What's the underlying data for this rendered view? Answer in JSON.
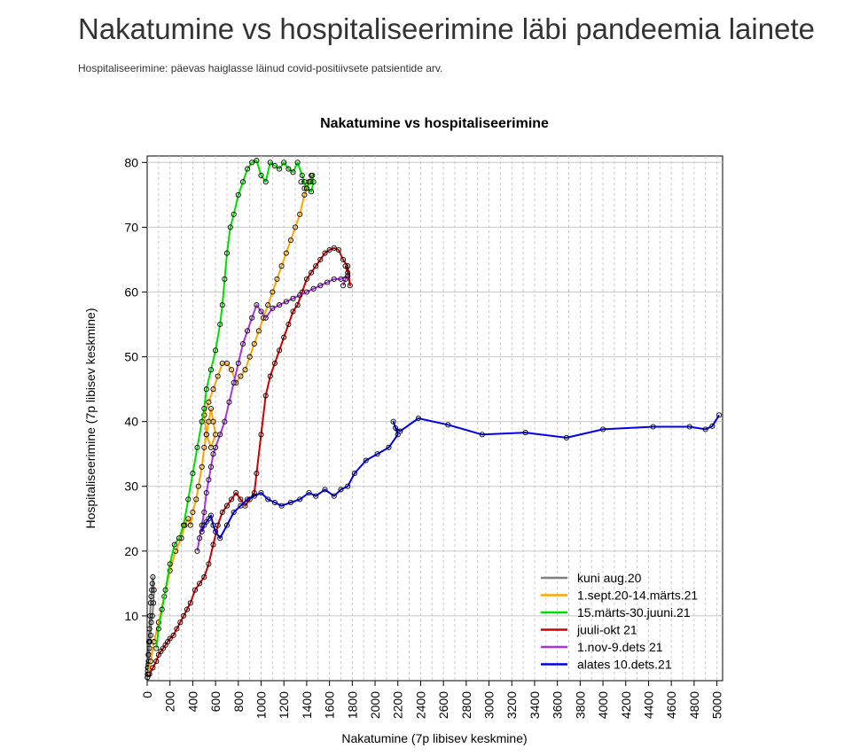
{
  "page": {
    "title": "Nakatumine vs hospitaliseerimine läbi pandeemia lainete",
    "subtitle": "Hospitaliseerimine: päevas haiglasse läinud covid-positiivsete patsientide arv."
  },
  "chart_data": {
    "type": "line",
    "title": "Nakatumine vs hospitaliseerimine",
    "xlabel": "Nakatumine (7p libisev keskmine)",
    "ylabel": "Hospitaliseerimine (7p libisev keskmine)",
    "xlim": [
      0,
      5050
    ],
    "ylim": [
      0,
      81
    ],
    "x_ticks": [
      0,
      200,
      400,
      600,
      800,
      1000,
      1200,
      1400,
      1600,
      1800,
      2000,
      2200,
      2400,
      2600,
      2800,
      3000,
      3200,
      3400,
      3600,
      3800,
      4000,
      4200,
      4400,
      4600,
      4800,
      5000
    ],
    "x_tick_labels": [
      "0",
      "200",
      "400",
      "600",
      "800",
      "1000",
      "1200",
      "1400",
      "1600",
      "1800",
      "2000",
      "2200",
      "2400",
      "2600",
      "2800",
      "3000",
      "3200",
      "3400",
      "3600",
      "3800",
      "4000",
      "4200",
      "4400",
      "4600",
      "4800",
      "5000"
    ],
    "y_ticks": [
      10,
      20,
      30,
      40,
      50,
      60,
      70,
      80
    ],
    "y_tick_labels": [
      "10",
      "20",
      "30",
      "40",
      "50",
      "60",
      "70",
      "80"
    ],
    "grid": true,
    "legend_position": "bottom-right",
    "series": [
      {
        "name": "kuni aug.20",
        "color": "#808080",
        "x": [
          2,
          5,
          10,
          15,
          20,
          25,
          30,
          35,
          40,
          45,
          50,
          60,
          55,
          45,
          35,
          30,
          25,
          20,
          15,
          12,
          10,
          8,
          5,
          3,
          2
        ],
        "y": [
          0.5,
          2,
          4,
          6,
          8,
          10,
          12,
          13,
          14,
          15,
          16,
          14,
          12,
          10,
          9,
          7,
          6,
          5,
          4,
          3,
          2.5,
          2,
          1.5,
          1,
          0.5
        ]
      },
      {
        "name": "1.sept.20-14.märts.21",
        "color": "#FFA500",
        "x": [
          10,
          30,
          60,
          100,
          150,
          200,
          250,
          300,
          330,
          360,
          380,
          400,
          430,
          450,
          480,
          500,
          520,
          540,
          560,
          580,
          600,
          560,
          520,
          500,
          540,
          580,
          620,
          660,
          700,
          740,
          780,
          820,
          860,
          900,
          940,
          980,
          1020,
          1060,
          1100,
          1140,
          1180,
          1220,
          1260,
          1300,
          1340,
          1380,
          1420,
          1440,
          1400,
          1380
        ],
        "y": [
          1,
          3,
          6,
          9,
          13,
          17,
          20,
          22,
          24,
          25,
          24,
          26,
          28,
          30,
          33,
          36,
          38,
          40,
          42,
          40,
          38,
          36,
          38,
          41,
          43,
          45,
          47,
          49,
          49,
          48,
          46,
          47,
          48,
          50,
          52,
          54,
          56,
          58,
          60,
          62,
          64,
          66,
          68,
          70,
          72,
          75,
          77,
          78,
          76,
          76
        ]
      },
      {
        "name": "15.märts-30.juuni.21",
        "color": "#00DD00",
        "x": [
          80,
          100,
          130,
          160,
          200,
          240,
          280,
          320,
          360,
          400,
          440,
          480,
          500,
          520,
          560,
          600,
          640,
          660,
          680,
          700,
          730,
          760,
          800,
          840,
          880,
          920,
          960,
          1000,
          1040,
          1080,
          1120,
          1160,
          1200,
          1240,
          1280,
          1320,
          1360,
          1400,
          1440,
          1460,
          1450,
          1430,
          1400,
          1380,
          1350
        ],
        "y": [
          5,
          8,
          11,
          14,
          18,
          21,
          22,
          24,
          28,
          32,
          36,
          40,
          42,
          45,
          48,
          51,
          55,
          58,
          62,
          66,
          70,
          72,
          75,
          77,
          79,
          80,
          80.3,
          78,
          77,
          80,
          79.5,
          79,
          80,
          79,
          78.5,
          80,
          78,
          76,
          75.5,
          77,
          78,
          77,
          76,
          77,
          77
        ]
      },
      {
        "name": "juuli-okt 21",
        "color": "#CC0000",
        "x": [
          20,
          50,
          80,
          100,
          120,
          140,
          160,
          180,
          200,
          230,
          260,
          290,
          320,
          350,
          380,
          420,
          460,
          500,
          540,
          580,
          620,
          660,
          700,
          740,
          780,
          820,
          860,
          900,
          940,
          960,
          1000,
          1040,
          1080,
          1120,
          1160,
          1200,
          1240,
          1280,
          1320,
          1360,
          1400,
          1440,
          1480,
          1520,
          1560,
          1600,
          1640,
          1680,
          1720,
          1760,
          1780,
          1760,
          1740
        ],
        "y": [
          1,
          2,
          3,
          4,
          4.5,
          5,
          5.5,
          6,
          6.5,
          7,
          8,
          9,
          10,
          11,
          12,
          14,
          15,
          16,
          18,
          21,
          24,
          26,
          27,
          28,
          29,
          28,
          27,
          28,
          29,
          32,
          38,
          44,
          47,
          49,
          51,
          53,
          55,
          57,
          58,
          60,
          62,
          63,
          64,
          65,
          66,
          66.5,
          66.8,
          66.5,
          65,
          64,
          61,
          63,
          64
        ]
      },
      {
        "name": "1.nov-9.dets 21",
        "color": "#AA33DD",
        "x": [
          440,
          460,
          480,
          500,
          520,
          540,
          560,
          580,
          600,
          640,
          680,
          720,
          760,
          800,
          840,
          880,
          920,
          960,
          1000,
          1040,
          1100,
          1160,
          1220,
          1280,
          1340,
          1400,
          1460,
          1520,
          1580,
          1640,
          1700,
          1760,
          1740,
          1720
        ],
        "y": [
          20,
          22,
          24,
          26,
          29,
          31,
          33,
          35,
          36,
          38,
          40,
          43,
          46,
          49,
          52,
          54,
          56,
          58,
          57,
          56,
          57.5,
          58,
          58.5,
          59,
          59.5,
          60,
          60.5,
          61,
          61.5,
          62,
          62,
          62.5,
          62,
          61
        ]
      },
      {
        "name": "alates 10.dets.21",
        "color": "#0000EE",
        "x": [
          480,
          500,
          520,
          540,
          560,
          580,
          600,
          640,
          700,
          760,
          820,
          880,
          940,
          1000,
          1060,
          1120,
          1180,
          1260,
          1340,
          1420,
          1480,
          1560,
          1640,
          1700,
          1760,
          1820,
          1920,
          2020,
          2120,
          2200,
          2160,
          2180,
          2220,
          2380,
          2640,
          2940,
          3320,
          3680,
          4000,
          4440,
          4760,
          4900,
          4960,
          5020
        ],
        "y": [
          23,
          24,
          24.5,
          25,
          25.5,
          24,
          23,
          22,
          24,
          26,
          27,
          28,
          28.5,
          29,
          28,
          27.5,
          27,
          27.5,
          28,
          29,
          28.5,
          29.5,
          28.5,
          29.5,
          30,
          32,
          34,
          35,
          36,
          38,
          40,
          39,
          38.5,
          40.5,
          39.5,
          38,
          38.3,
          37.5,
          38.8,
          39.2,
          39.2,
          38.8,
          39.3,
          41
        ]
      }
    ]
  }
}
